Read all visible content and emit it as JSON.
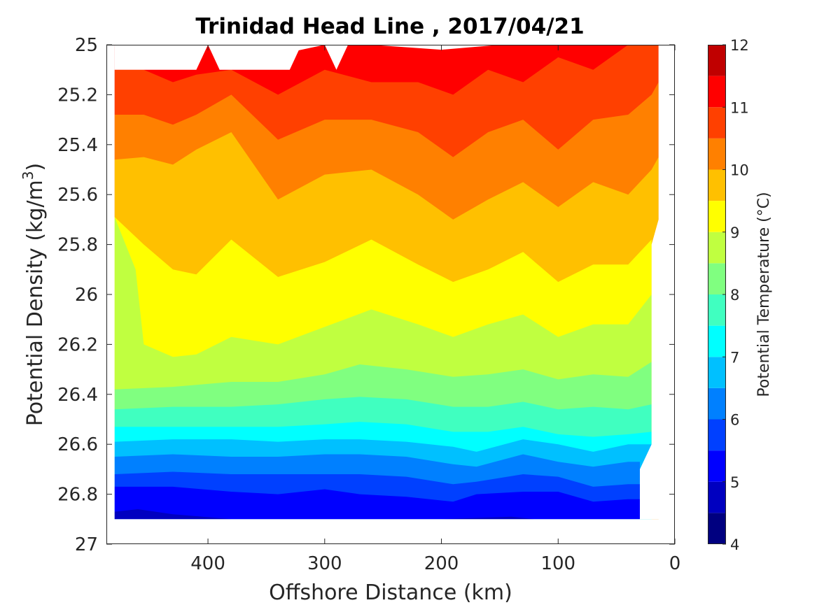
{
  "chart_data": {
    "type": "contour",
    "title": "Trinidad Head Line , 2017/04/21",
    "xlabel": "Offshore Distance (km)",
    "ylabel_main": "Potential Density (kg/m",
    "ylabel_sup": "3",
    "ylabel_close": ")",
    "x_direction": "reversed",
    "xlim": [
      0,
      487
    ],
    "ylim": [
      25,
      27
    ],
    "y_direction": "reversed",
    "x_ticks": [
      400,
      300,
      200,
      100,
      0
    ],
    "y_ticks": [
      25,
      25.2,
      25.4,
      25.6,
      25.8,
      26,
      26.2,
      26.4,
      26.6,
      26.8,
      27
    ],
    "colorbar": {
      "label": "Potential Temperature (°C)",
      "range": [
        4,
        12
      ],
      "ticks": [
        4,
        5,
        6,
        7,
        8,
        9,
        10,
        11,
        12
      ],
      "levels": [
        4,
        4.5,
        5,
        5.5,
        6,
        6.5,
        7,
        7.5,
        8,
        8.5,
        9,
        9.5,
        10,
        10.5,
        11,
        11.5,
        12
      ],
      "colors": [
        "#000080",
        "#0000C0",
        "#0000FF",
        "#0040FF",
        "#0080FF",
        "#00C0FF",
        "#00FFFF",
        "#40FFC0",
        "#80FF80",
        "#C0FF40",
        "#FFFF00",
        "#FFC000",
        "#FF8000",
        "#FF4000",
        "#FF0000",
        "#C00000"
      ]
    },
    "data_extent": {
      "x": [
        14,
        480
      ],
      "density": [
        25.1,
        26.9
      ]
    },
    "isotherms": [
      {
        "temperature": 11.5,
        "x": [
          480,
          430,
          400,
          350,
          300,
          260,
          200,
          150,
          100,
          50,
          20
        ],
        "density": [
          25.0,
          25.0,
          25.0,
          25.05,
          25.0,
          25.0,
          25.02,
          25.0,
          25.0,
          25.0,
          25.0
        ]
      },
      {
        "temperature": 11.0,
        "x": [
          480,
          455,
          430,
          410,
          380,
          340,
          300,
          260,
          220,
          190,
          160,
          130,
          100,
          70,
          40,
          20,
          14
        ],
        "density": [
          25.1,
          25.1,
          25.15,
          25.12,
          25.1,
          25.2,
          25.1,
          25.15,
          25.15,
          25.2,
          25.1,
          25.15,
          25.05,
          25.1,
          25.0,
          25.0,
          25.0
        ]
      },
      {
        "temperature": 10.5,
        "x": [
          480,
          455,
          430,
          410,
          380,
          340,
          300,
          260,
          220,
          190,
          160,
          130,
          100,
          70,
          40,
          20,
          14
        ],
        "density": [
          25.28,
          25.28,
          25.32,
          25.28,
          25.2,
          25.38,
          25.3,
          25.3,
          25.35,
          25.45,
          25.35,
          25.3,
          25.42,
          25.3,
          25.28,
          25.2,
          25.15
        ]
      },
      {
        "temperature": 10.0,
        "x": [
          480,
          455,
          430,
          410,
          380,
          340,
          300,
          260,
          220,
          190,
          160,
          130,
          100,
          70,
          40,
          20,
          14
        ],
        "density": [
          25.46,
          25.45,
          25.48,
          25.42,
          25.35,
          25.62,
          25.52,
          25.5,
          25.6,
          25.7,
          25.62,
          25.55,
          25.65,
          25.55,
          25.6,
          25.5,
          25.45
        ]
      },
      {
        "temperature": 9.5,
        "x": [
          480,
          455,
          430,
          410,
          380,
          340,
          300,
          260,
          220,
          190,
          160,
          130,
          100,
          70,
          40,
          20
        ],
        "density": [
          25.69,
          25.8,
          25.9,
          25.92,
          25.78,
          25.93,
          25.87,
          25.78,
          25.88,
          25.95,
          25.9,
          25.83,
          25.95,
          25.88,
          25.88,
          25.78
        ]
      },
      {
        "temperature": 9.0,
        "x": [
          480,
          462,
          455,
          430,
          410,
          380,
          340,
          300,
          260,
          220,
          190,
          160,
          130,
          100,
          70,
          40,
          20
        ],
        "density": [
          25.69,
          25.9,
          26.2,
          26.25,
          26.24,
          26.17,
          26.2,
          26.13,
          26.06,
          26.12,
          26.17,
          26.12,
          26.08,
          26.17,
          26.12,
          26.12,
          26.0
        ]
      },
      {
        "temperature": 8.5,
        "x": [
          480,
          430,
          380,
          340,
          300,
          270,
          230,
          190,
          160,
          130,
          100,
          70,
          40,
          20
        ],
        "density": [
          26.38,
          26.37,
          26.35,
          26.35,
          26.32,
          26.28,
          26.3,
          26.33,
          26.32,
          26.3,
          26.34,
          26.32,
          26.33,
          26.27
        ]
      },
      {
        "temperature": 8.0,
        "x": [
          480,
          430,
          380,
          340,
          300,
          270,
          230,
          190,
          160,
          130,
          100,
          70,
          40,
          20
        ],
        "density": [
          26.46,
          26.45,
          26.45,
          26.44,
          26.42,
          26.41,
          26.42,
          26.45,
          26.45,
          26.43,
          26.46,
          26.45,
          26.46,
          26.44
        ]
      },
      {
        "temperature": 7.5,
        "x": [
          480,
          430,
          380,
          340,
          300,
          270,
          230,
          190,
          160,
          130,
          100,
          70,
          40,
          20
        ],
        "density": [
          26.53,
          26.53,
          26.53,
          26.53,
          26.52,
          26.51,
          26.52,
          26.55,
          26.55,
          26.53,
          26.56,
          26.57,
          26.56,
          26.55
        ]
      },
      {
        "temperature": 7.0,
        "x": [
          480,
          430,
          380,
          340,
          300,
          270,
          230,
          190,
          170,
          130,
          100,
          70,
          40,
          20
        ],
        "density": [
          26.59,
          26.58,
          26.58,
          26.59,
          26.58,
          26.58,
          26.59,
          26.61,
          26.63,
          26.58,
          26.6,
          26.63,
          26.6,
          26.6
        ]
      },
      {
        "temperature": 6.5,
        "x": [
          480,
          430,
          380,
          340,
          300,
          270,
          230,
          190,
          170,
          130,
          100,
          70,
          40,
          30
        ],
        "density": [
          26.65,
          26.64,
          26.65,
          26.65,
          26.64,
          26.64,
          26.65,
          26.68,
          26.69,
          26.64,
          26.67,
          26.69,
          26.67,
          26.67
        ]
      },
      {
        "temperature": 6.0,
        "x": [
          480,
          430,
          380,
          340,
          300,
          270,
          230,
          190,
          170,
          130,
          100,
          70,
          40,
          30
        ],
        "density": [
          26.72,
          26.71,
          26.72,
          26.72,
          26.72,
          26.72,
          26.73,
          26.76,
          26.75,
          26.72,
          26.73,
          26.77,
          26.76,
          26.76
        ]
      },
      {
        "temperature": 5.5,
        "x": [
          480,
          430,
          380,
          340,
          300,
          270,
          230,
          190,
          170,
          130,
          100,
          70,
          40,
          30
        ],
        "density": [
          26.77,
          26.77,
          26.79,
          26.8,
          26.78,
          26.8,
          26.81,
          26.83,
          26.8,
          26.79,
          26.79,
          26.83,
          26.82,
          26.82
        ]
      },
      {
        "temperature": 5.0,
        "x": [
          480,
          460,
          430,
          380,
          340,
          300,
          270,
          230,
          200,
          140,
          120,
          30
        ],
        "density": [
          26.87,
          26.86,
          26.88,
          26.9,
          26.9,
          26.9,
          26.9,
          26.9,
          26.9,
          26.89,
          26.9,
          26.9
        ]
      }
    ]
  }
}
